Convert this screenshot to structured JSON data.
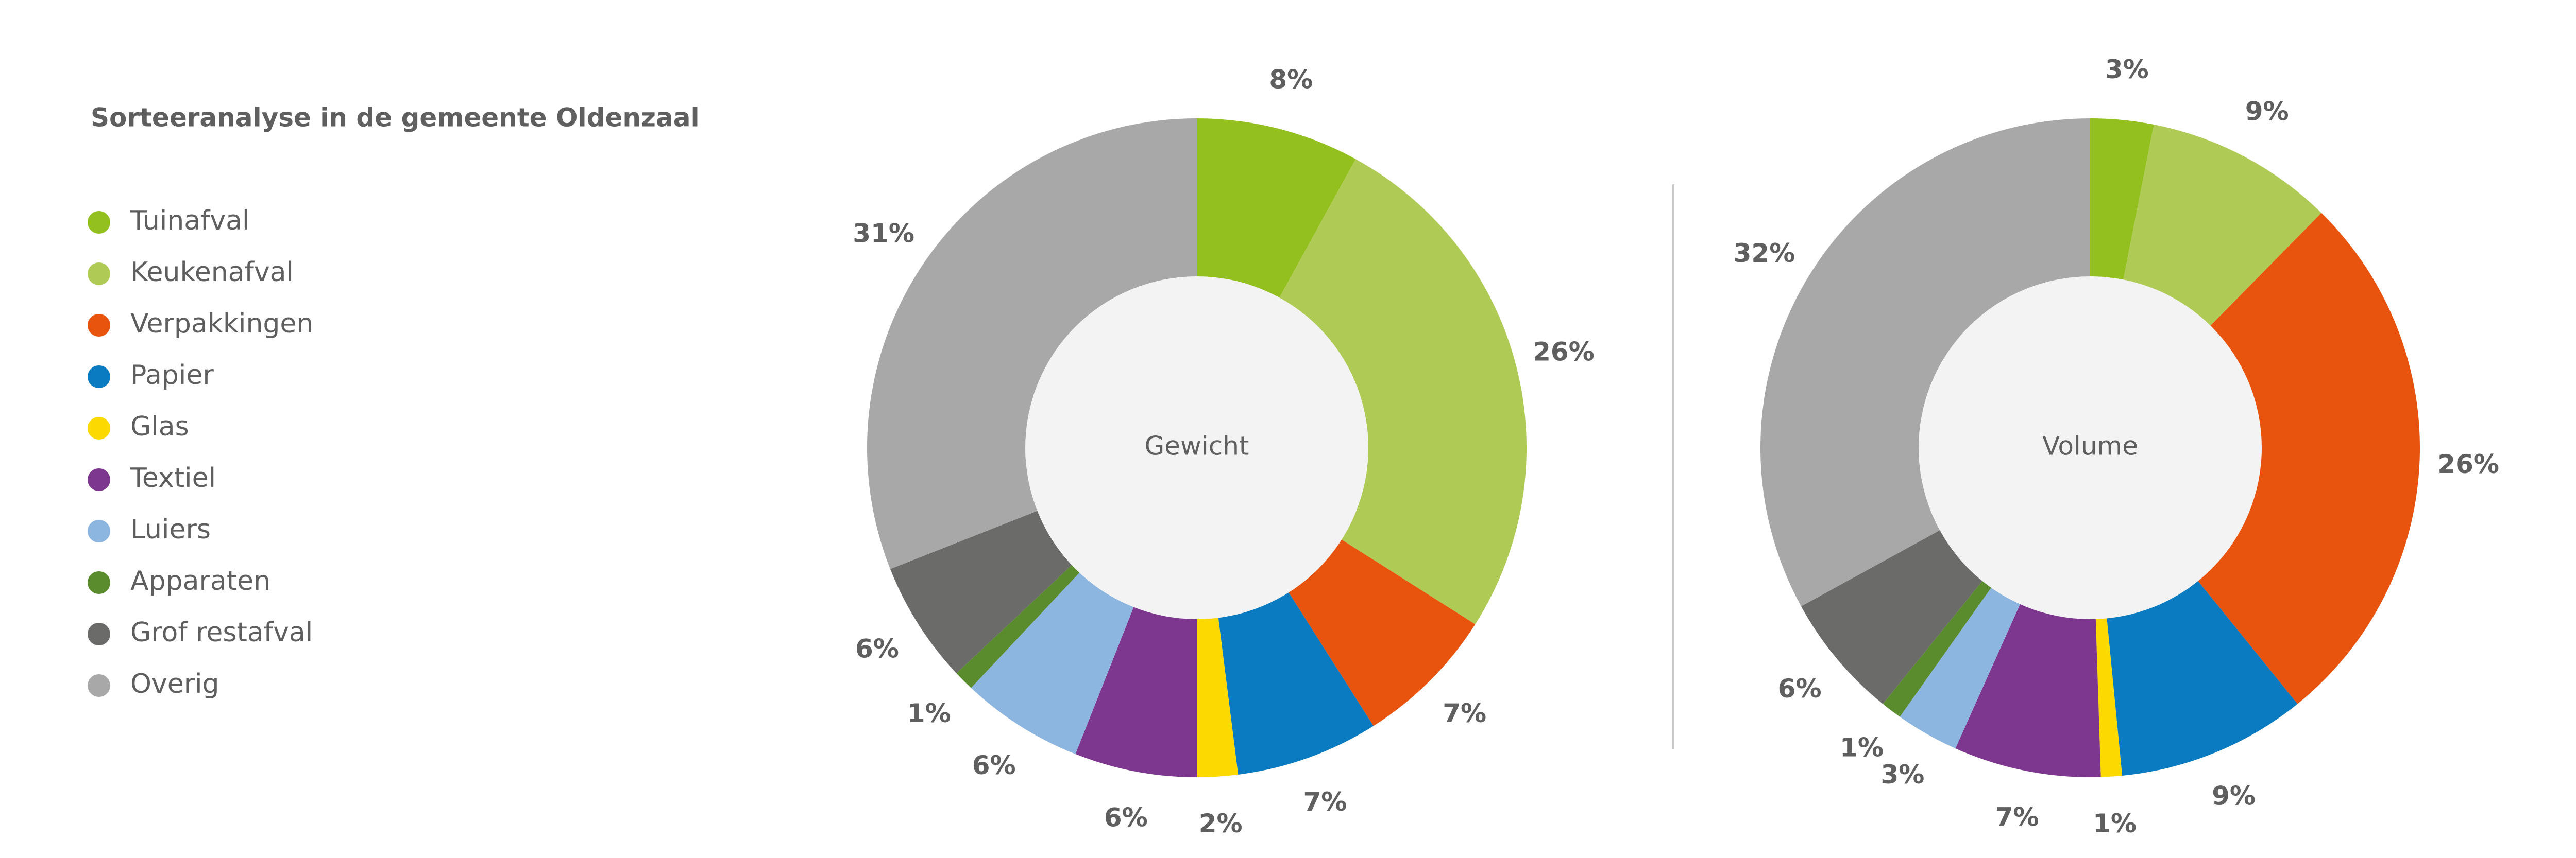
{
  "title": "Sorteeranalyse in de gemeente Oldenzaal",
  "chart_data": [
    {
      "type": "pie",
      "title": "Gewicht",
      "categories": [
        "Tuinafval",
        "Keukenafval",
        "Verpakkingen",
        "Papier",
        "Glas",
        "Textiel",
        "Luiers",
        "Apparaten",
        "Grof restafval",
        "Overig"
      ],
      "values": [
        8,
        26,
        7,
        7,
        2,
        6,
        6,
        1,
        6,
        31
      ],
      "value_labels": [
        "8%",
        "26%",
        "7%",
        "7%",
        "2%",
        "6%",
        "6%",
        "1%",
        "6%",
        "31%"
      ],
      "colors": [
        "#93c01f",
        "#afcb55",
        "#e8530e",
        "#0b7bc1",
        "#fcd900",
        "#7d378f",
        "#8cb5df",
        "#5a8c2e",
        "#6b6b6a",
        "#a8a8a8"
      ]
    },
    {
      "type": "pie",
      "title": "Volume",
      "categories": [
        "Tuinafval",
        "Keukenafval",
        "Verpakkingen",
        "Papier",
        "Glas",
        "Textiel",
        "Luiers",
        "Apparaten",
        "Grof restafval",
        "Overig"
      ],
      "values": [
        3,
        9,
        26,
        9,
        1,
        7,
        3,
        1,
        6,
        32
      ],
      "value_labels": [
        "3%",
        "9%",
        "26%",
        "9%",
        "1%",
        "7%",
        "3%",
        "1%",
        "6%",
        "32%"
      ],
      "colors": [
        "#93c01f",
        "#afcb55",
        "#e8530e",
        "#0b7bc1",
        "#fcd900",
        "#7d378f",
        "#8cb5df",
        "#5a8c2e",
        "#6b6b6a",
        "#a8a8a8"
      ]
    }
  ]
}
